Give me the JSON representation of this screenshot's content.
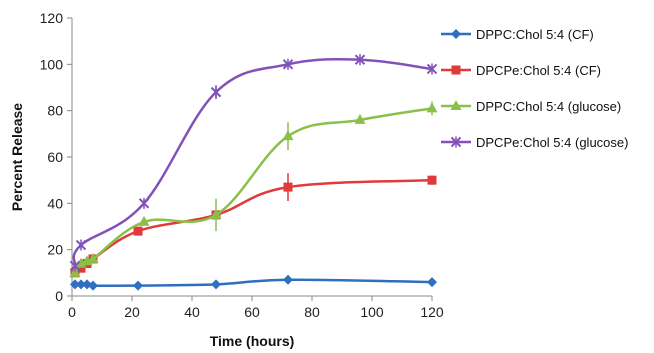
{
  "chart_data": {
    "type": "line",
    "title": "",
    "xlabel": "Time (hours)",
    "ylabel": "Percent Release",
    "xlim": [
      0,
      120
    ],
    "ylim": [
      0,
      120
    ],
    "xticks": [
      0,
      20,
      40,
      60,
      80,
      100,
      120
    ],
    "yticks": [
      0,
      20,
      40,
      60,
      80,
      100,
      120
    ],
    "grid": false,
    "legend_position": "right",
    "series": [
      {
        "name": "DPPC:Chol 5:4 (CF)",
        "color": "#2f6fc0",
        "marker": "diamond",
        "x": [
          1,
          3,
          5,
          7,
          22,
          48,
          72,
          120
        ],
        "y": [
          5,
          5,
          5,
          4.5,
          4.5,
          5,
          7,
          6
        ],
        "err": [
          0,
          0,
          0,
          0,
          0,
          0,
          0,
          0
        ]
      },
      {
        "name": "DPCPe:Chol 5:4 (CF)",
        "color": "#e03a3a",
        "marker": "square",
        "x": [
          1,
          3,
          5,
          7,
          22,
          48,
          72,
          120
        ],
        "y": [
          10,
          12,
          14,
          16,
          28,
          35,
          47,
          50
        ],
        "err": [
          0,
          0,
          0,
          0,
          0,
          0,
          6,
          2
        ]
      },
      {
        "name": "DPPC:Chol 5:4 (glucose)",
        "color": "#8ac04a",
        "marker": "triangle",
        "x": [
          1,
          3,
          5,
          7,
          24,
          48,
          72,
          96,
          120
        ],
        "y": [
          10,
          14,
          15,
          16,
          32,
          35,
          69,
          76,
          81
        ],
        "err": [
          0,
          0,
          0,
          0,
          0,
          7,
          6,
          0,
          3
        ]
      },
      {
        "name": "DPCPe:Chol 5:4 (glucose)",
        "color": "#8252b8",
        "marker": "x",
        "x": [
          1,
          3,
          24,
          48,
          72,
          96,
          120
        ],
        "y": [
          13,
          22,
          40,
          88,
          100,
          102,
          98
        ],
        "err": [
          0,
          0,
          0,
          3,
          0,
          0,
          0
        ]
      }
    ]
  }
}
